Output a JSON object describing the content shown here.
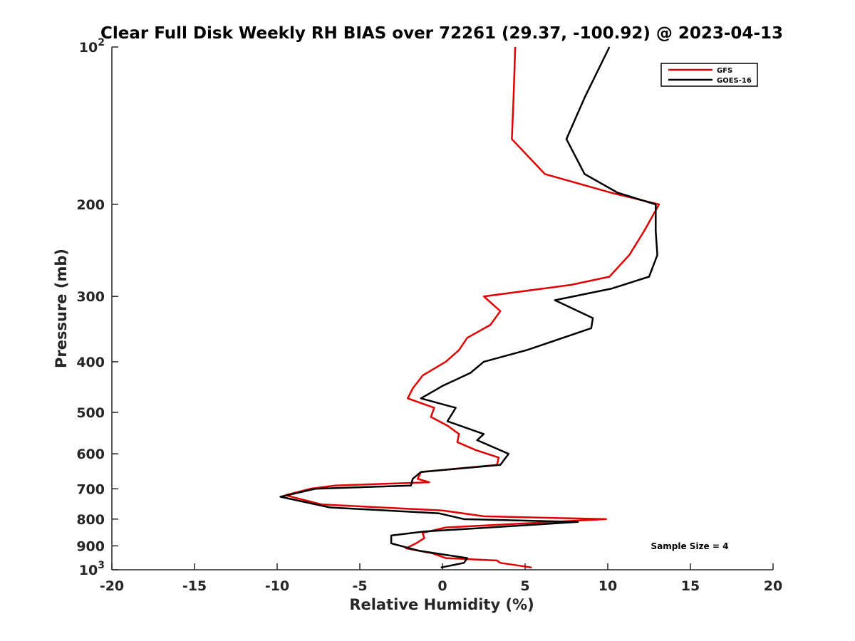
{
  "chart_data": {
    "type": "line",
    "title": "Clear Full Disk Weekly RH BIAS over 72261 (29.37, -100.92) @ 2023-04-13",
    "xlabel": "Relative Humidity (%)",
    "ylabel": "Pressure (mb)",
    "xlim": [
      -20,
      20
    ],
    "ylim": [
      100,
      1000
    ],
    "y_scale": "log",
    "y_reversed": true,
    "grid": false,
    "legend_position": "top-right",
    "x_ticks": [
      -20,
      -15,
      -10,
      -5,
      0,
      5,
      10,
      15,
      20
    ],
    "x_tick_labels": [
      "-20",
      "-15",
      "-10",
      "-5",
      "0",
      "5",
      "10",
      "15",
      "20"
    ],
    "y_ticks": [
      100,
      200,
      300,
      400,
      500,
      600,
      700,
      800,
      900,
      1000
    ],
    "y_tick_labels": [
      {
        "base": "10",
        "exp": "2"
      },
      {
        "base": "200",
        "exp": ""
      },
      {
        "base": "300",
        "exp": ""
      },
      {
        "base": "400",
        "exp": ""
      },
      {
        "base": "500",
        "exp": ""
      },
      {
        "base": "600",
        "exp": ""
      },
      {
        "base": "700",
        "exp": ""
      },
      {
        "base": "800",
        "exp": ""
      },
      {
        "base": "900",
        "exp": ""
      },
      {
        "base": "10",
        "exp": "3"
      }
    ],
    "annotation": "Sample Size = 4",
    "series": [
      {
        "name": "GFS",
        "color": "#e00000",
        "points": [
          [
            4.4,
            100
          ],
          [
            4.3,
            125
          ],
          [
            4.2,
            150
          ],
          [
            6.2,
            175
          ],
          [
            10.2,
            190
          ],
          [
            13.1,
            200
          ],
          [
            12.2,
            225
          ],
          [
            11.3,
            250
          ],
          [
            10.1,
            275
          ],
          [
            7.8,
            285
          ],
          [
            2.5,
            300
          ],
          [
            3.5,
            320
          ],
          [
            2.9,
            340
          ],
          [
            1.5,
            360
          ],
          [
            1.0,
            380
          ],
          [
            0.2,
            400
          ],
          [
            -1.2,
            425
          ],
          [
            -1.8,
            450
          ],
          [
            -2.1,
            470
          ],
          [
            -0.5,
            490
          ],
          [
            -0.7,
            510
          ],
          [
            0.3,
            530
          ],
          [
            1.0,
            550
          ],
          [
            0.9,
            570
          ],
          [
            2.0,
            590
          ],
          [
            3.4,
            610
          ],
          [
            3.3,
            630
          ],
          [
            -1.3,
            650
          ],
          [
            -1.5,
            670
          ],
          [
            -0.8,
            680
          ],
          [
            -6.5,
            690
          ],
          [
            -8.0,
            700
          ],
          [
            -9.5,
            720
          ],
          [
            -7.3,
            750
          ],
          [
            0.0,
            770
          ],
          [
            2.5,
            790
          ],
          [
            9.9,
            800
          ],
          [
            0.2,
            830
          ],
          [
            -1.2,
            850
          ],
          [
            -1.1,
            870
          ],
          [
            -1.6,
            890
          ],
          [
            -2.2,
            910
          ],
          [
            -0.6,
            930
          ],
          [
            0.2,
            950
          ],
          [
            3.3,
            960
          ],
          [
            3.5,
            970
          ],
          [
            5.4,
            990
          ]
        ]
      },
      {
        "name": "GOES-16",
        "color": "#000000",
        "points": [
          [
            10.1,
            100
          ],
          [
            8.6,
            125
          ],
          [
            7.5,
            150
          ],
          [
            8.6,
            175
          ],
          [
            10.6,
            190
          ],
          [
            12.9,
            200
          ],
          [
            12.9,
            225
          ],
          [
            13.0,
            250
          ],
          [
            12.5,
            275
          ],
          [
            10.2,
            290
          ],
          [
            6.8,
            305
          ],
          [
            9.1,
            330
          ],
          [
            9.0,
            345
          ],
          [
            5.1,
            380
          ],
          [
            2.5,
            400
          ],
          [
            1.7,
            420
          ],
          [
            0.0,
            445
          ],
          [
            -1.3,
            470
          ],
          [
            0.8,
            490
          ],
          [
            0.3,
            520
          ],
          [
            2.5,
            550
          ],
          [
            2.1,
            565
          ],
          [
            4.0,
            600
          ],
          [
            3.5,
            630
          ],
          [
            -1.3,
            650
          ],
          [
            -1.8,
            670
          ],
          [
            -1.9,
            690
          ],
          [
            -7.7,
            700
          ],
          [
            -9.8,
            725
          ],
          [
            -6.8,
            760
          ],
          [
            -0.2,
            780
          ],
          [
            1.3,
            800
          ],
          [
            8.2,
            810
          ],
          [
            -1.1,
            845
          ],
          [
            -3.1,
            860
          ],
          [
            -3.1,
            890
          ],
          [
            -1.4,
            920
          ],
          [
            1.5,
            950
          ],
          [
            1.3,
            970
          ],
          [
            -0.1,
            990
          ]
        ]
      }
    ]
  }
}
